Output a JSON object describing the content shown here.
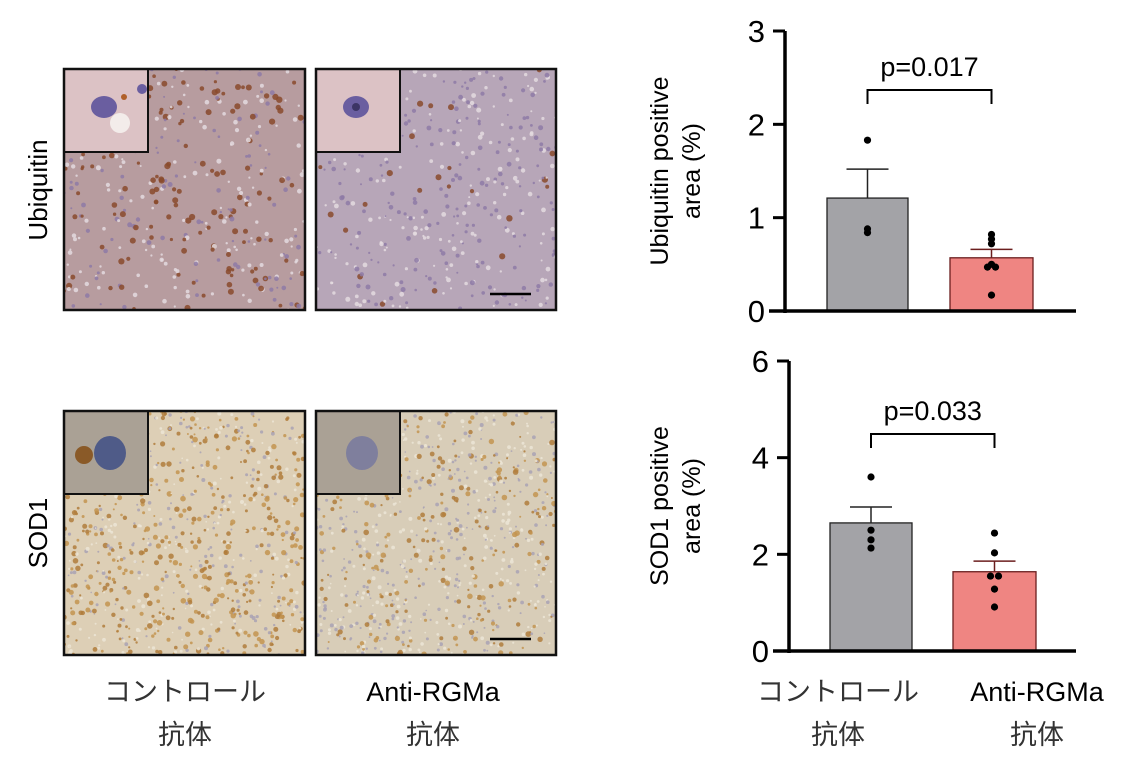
{
  "micrographs": {
    "rows": [
      {
        "label": "Ubiquitin",
        "stain": "ubiquitin"
      },
      {
        "label": "SOD1",
        "stain": "sod1"
      }
    ],
    "columns": [
      {
        "label_line1": "コントロール",
        "label_line2": "抗体"
      },
      {
        "label_line1": "Anti-RGMa",
        "label_line2": "抗体"
      }
    ]
  },
  "colors": {
    "control": "#a3a3a7",
    "anti_rgma": "#ef8582",
    "ubiquitin_bg": "#b9a3ad",
    "sod1_bg": "#ddd2c0"
  },
  "chart_data": [
    {
      "type": "bar",
      "ylabel_line1": "Ubiquitin positive",
      "ylabel_line2": "area (%)",
      "ylim": [
        0,
        3
      ],
      "yticks": [
        "0",
        "1",
        "2",
        "3"
      ],
      "categories": [
        {
          "line1": "コントロール",
          "line2": "抗体"
        },
        {
          "line1": "Anti-RGMa",
          "line2": "抗体"
        }
      ],
      "values": [
        1.21,
        0.57
      ],
      "sem": [
        0.31,
        0.09
      ],
      "points": [
        [
          1.83,
          0.88,
          0.84
        ],
        [
          0.82,
          0.77,
          0.72,
          0.5,
          0.47,
          0.47,
          0.17
        ]
      ],
      "annotation": "p=0.017"
    },
    {
      "type": "bar",
      "ylabel_line1": "SOD1 positive",
      "ylabel_line2": "area (%)",
      "ylim": [
        0,
        6
      ],
      "yticks": [
        "0",
        "2",
        "4",
        "6"
      ],
      "categories": [
        {
          "line1": "コントロール",
          "line2": "抗体"
        },
        {
          "line1": "Anti-RGMa",
          "line2": "抗体"
        }
      ],
      "values": [
        2.65,
        1.64
      ],
      "sem": [
        0.33,
        0.22
      ],
      "points": [
        [
          3.6,
          2.5,
          2.3,
          2.13
        ],
        [
          2.44,
          2.03,
          1.55,
          1.55,
          1.28,
          0.91
        ]
      ],
      "annotation": "p=0.033"
    }
  ]
}
